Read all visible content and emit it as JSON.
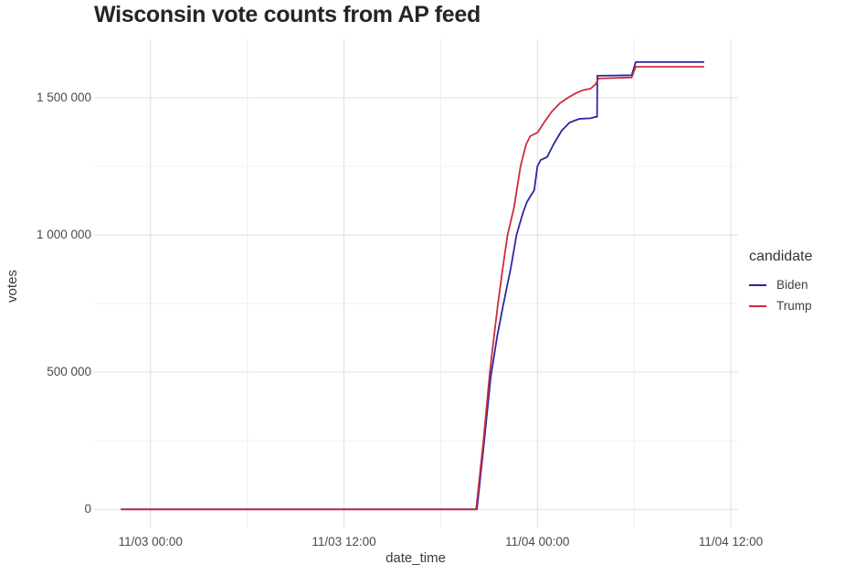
{
  "title": "Wisconsin vote counts from AP feed",
  "chart_data": {
    "type": "line",
    "title": "Wisconsin vote counts from AP feed",
    "xlabel": "date_time",
    "ylabel": "votes",
    "x_unit": "hours since 2020-11-03 00:00",
    "xlim": [
      -3.5,
      36.45
    ],
    "ylim": [
      -66000,
      1713000
    ],
    "grid": true,
    "x_ticks": [
      {
        "h": 0,
        "label": "11/03 00:00"
      },
      {
        "h": 12,
        "label": "11/03 12:00"
      },
      {
        "h": 24,
        "label": "11/04 00:00"
      },
      {
        "h": 36,
        "label": "11/04 12:00"
      }
    ],
    "x_minor": [
      6,
      18,
      30
    ],
    "y_ticks": [
      {
        "v": 0,
        "label": "0"
      },
      {
        "v": 500000,
        "label": "500 000"
      },
      {
        "v": 1000000,
        "label": "1 000 000"
      },
      {
        "v": 1500000,
        "label": "1 500 000"
      }
    ],
    "y_minor": [
      250000,
      750000,
      1250000
    ],
    "legend": {
      "title": "candidate",
      "position": "right"
    },
    "series": [
      {
        "name": "Biden",
        "color": "#2928a6",
        "points": [
          [
            -1.8,
            0
          ],
          [
            20.25,
            0
          ],
          [
            20.7,
            250000
          ],
          [
            21.1,
            480000
          ],
          [
            21.5,
            630000
          ],
          [
            21.9,
            750000
          ],
          [
            22.35,
            880000
          ],
          [
            22.7,
            1000000
          ],
          [
            23.1,
            1080000
          ],
          [
            23.35,
            1120000
          ],
          [
            23.55,
            1140000
          ],
          [
            23.8,
            1163000
          ],
          [
            24.0,
            1250000
          ],
          [
            24.2,
            1273000
          ],
          [
            24.6,
            1284000
          ],
          [
            25.0,
            1330000
          ],
          [
            25.5,
            1380000
          ],
          [
            26.0,
            1410000
          ],
          [
            26.6,
            1423000
          ],
          [
            27.3,
            1425000
          ],
          [
            27.6,
            1430000
          ],
          [
            27.7,
            1430000
          ],
          [
            27.72,
            1580000
          ],
          [
            29.85,
            1582000
          ],
          [
            30.1,
            1630000
          ],
          [
            34.3,
            1630000
          ]
        ]
      },
      {
        "name": "Trump",
        "color": "#cb2c3d",
        "points": [
          [
            -1.8,
            0
          ],
          [
            20.2,
            0
          ],
          [
            20.65,
            250000
          ],
          [
            21.05,
            500000
          ],
          [
            21.35,
            650000
          ],
          [
            21.55,
            750000
          ],
          [
            21.85,
            880000
          ],
          [
            22.15,
            1000000
          ],
          [
            22.55,
            1100000
          ],
          [
            22.95,
            1250000
          ],
          [
            23.3,
            1330000
          ],
          [
            23.55,
            1360000
          ],
          [
            24.0,
            1373000
          ],
          [
            24.5,
            1417000
          ],
          [
            24.9,
            1450000
          ],
          [
            25.4,
            1480000
          ],
          [
            25.9,
            1500000
          ],
          [
            26.4,
            1517000
          ],
          [
            26.8,
            1527000
          ],
          [
            27.3,
            1533000
          ],
          [
            27.62,
            1550000
          ],
          [
            27.78,
            1570000
          ],
          [
            29.85,
            1574000
          ],
          [
            30.1,
            1613000
          ],
          [
            34.3,
            1613000
          ]
        ]
      }
    ],
    "grid_colors": {
      "major": "#e2e2e2",
      "minor": "#efefef"
    }
  }
}
